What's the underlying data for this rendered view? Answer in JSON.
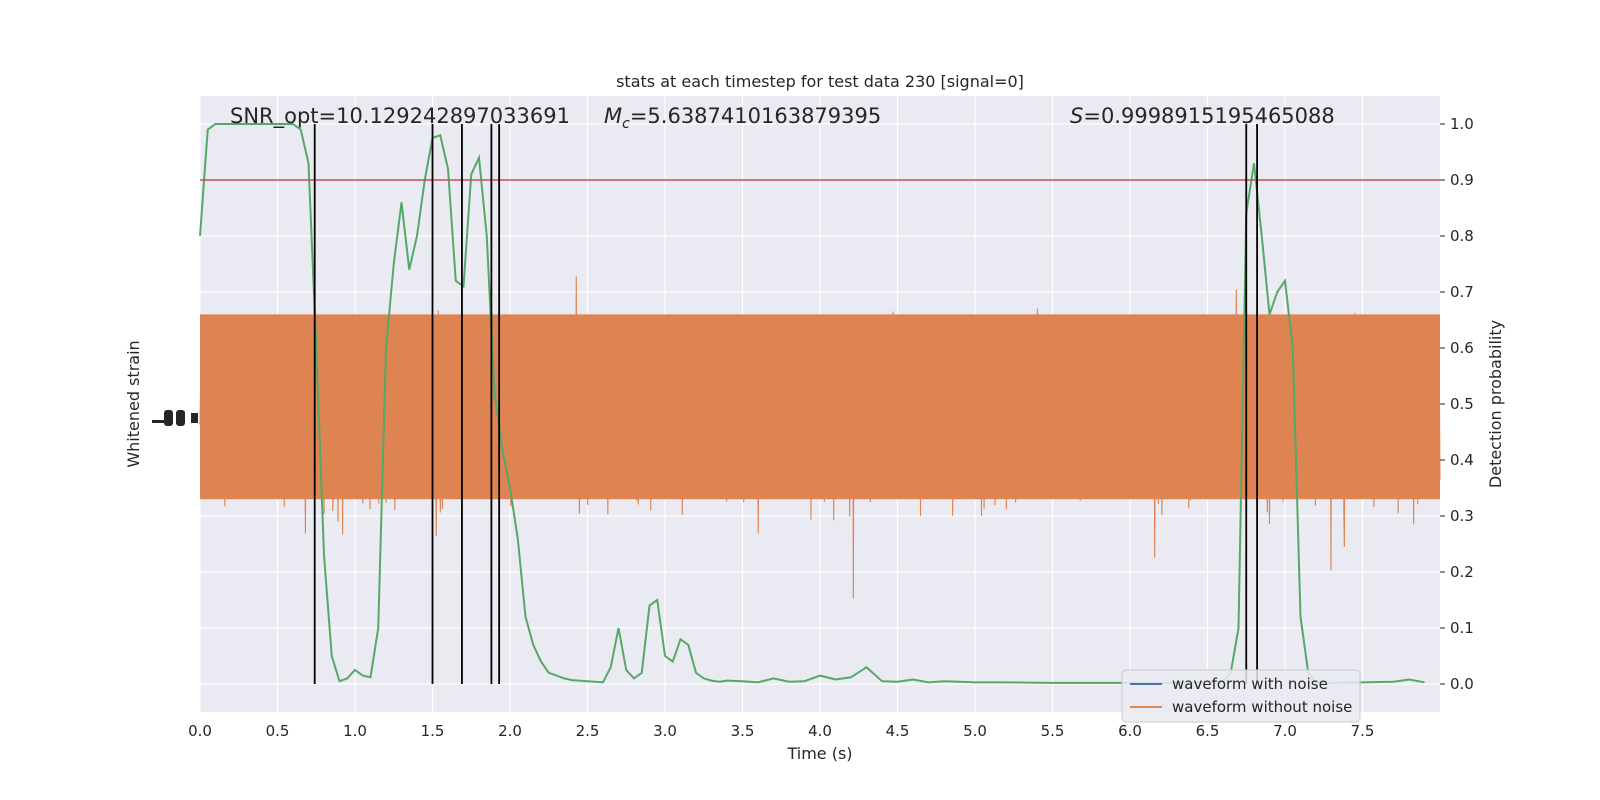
{
  "chart_data": {
    "type": "line",
    "title": "stats at each timestep for test data 230 [signal=0]",
    "xlabel": "Time (s)",
    "ylabel_left": "Whitened strain",
    "ylabel_right": "Detection probability",
    "xlim": [
      0.0,
      8.0
    ],
    "ylim_right": [
      -0.05,
      1.05
    ],
    "x_ticks": [
      "0.0",
      "0.5",
      "1.0",
      "1.5",
      "2.0",
      "2.5",
      "3.0",
      "3.5",
      "4.0",
      "4.5",
      "5.0",
      "5.5",
      "6.0",
      "6.5",
      "7.0",
      "7.5"
    ],
    "y_ticks_right": [
      "0.0",
      "0.1",
      "0.2",
      "0.3",
      "0.4",
      "0.5",
      "0.6",
      "0.7",
      "0.8",
      "0.9",
      "1.0"
    ],
    "grid": true,
    "legend_position": "lower-right",
    "annotations": {
      "snr": "SNR_opt=10.129242897033691",
      "mc_symbol": "M",
      "mc_sub": "c",
      "mc_value": "=5.6387410163879395",
      "s_symbol": "S",
      "s_value": "=0.9998915195465088"
    },
    "threshold": 0.9,
    "vertical_lines": [
      0.74,
      1.5,
      1.69,
      1.88,
      1.93,
      6.75,
      6.82
    ],
    "series": [
      {
        "name": "waveform with noise",
        "color": "#4c72b0",
        "kind": "strain"
      },
      {
        "name": "waveform without noise",
        "color": "#dd8452",
        "kind": "strain"
      },
      {
        "color": "#55a868",
        "kind": "probability",
        "x": [
          0.0,
          0.05,
          0.1,
          0.15,
          0.2,
          0.25,
          0.3,
          0.35,
          0.4,
          0.45,
          0.5,
          0.55,
          0.6,
          0.65,
          0.7,
          0.75,
          0.8,
          0.85,
          0.9,
          0.95,
          1.0,
          1.05,
          1.1,
          1.15,
          1.2,
          1.25,
          1.3,
          1.35,
          1.4,
          1.45,
          1.5,
          1.55,
          1.6,
          1.65,
          1.7,
          1.75,
          1.8,
          1.85,
          1.9,
          1.95,
          2.0,
          2.05,
          2.1,
          2.15,
          2.2,
          2.25,
          2.3,
          2.35,
          2.4,
          2.5,
          2.6,
          2.65,
          2.7,
          2.75,
          2.8,
          2.85,
          2.9,
          2.95,
          3.0,
          3.05,
          3.1,
          3.15,
          3.2,
          3.25,
          3.3,
          3.35,
          3.4,
          3.5,
          3.6,
          3.7,
          3.8,
          3.9,
          4.0,
          4.1,
          4.2,
          4.3,
          4.4,
          4.5,
          4.6,
          4.7,
          4.8,
          4.9,
          5.0,
          5.2,
          5.5,
          6.0,
          6.4,
          6.5,
          6.6,
          6.65,
          6.7,
          6.75,
          6.8,
          6.85,
          6.9,
          6.95,
          7.0,
          7.05,
          7.1,
          7.15,
          7.2,
          7.3,
          7.5,
          7.7,
          7.8,
          7.9
        ],
        "y": [
          0.8,
          0.99,
          1.0,
          1.0,
          1.0,
          1.0,
          1.0,
          1.0,
          1.0,
          1.0,
          1.0,
          1.0,
          1.0,
          0.99,
          0.93,
          0.6,
          0.23,
          0.05,
          0.005,
          0.01,
          0.025,
          0.015,
          0.012,
          0.1,
          0.6,
          0.75,
          0.86,
          0.74,
          0.8,
          0.9,
          0.975,
          0.98,
          0.92,
          0.72,
          0.71,
          0.91,
          0.94,
          0.8,
          0.52,
          0.42,
          0.35,
          0.26,
          0.12,
          0.07,
          0.04,
          0.02,
          0.015,
          0.01,
          0.007,
          0.005,
          0.003,
          0.03,
          0.1,
          0.025,
          0.01,
          0.02,
          0.14,
          0.15,
          0.05,
          0.04,
          0.08,
          0.07,
          0.02,
          0.01,
          0.006,
          0.004,
          0.006,
          0.005,
          0.003,
          0.01,
          0.004,
          0.005,
          0.015,
          0.008,
          0.012,
          0.03,
          0.005,
          0.004,
          0.008,
          0.003,
          0.005,
          0.004,
          0.003,
          0.003,
          0.002,
          0.002,
          0.002,
          0.004,
          0.005,
          0.02,
          0.1,
          0.84,
          0.93,
          0.8,
          0.66,
          0.7,
          0.72,
          0.6,
          0.12,
          0.02,
          0.003,
          0.002,
          0.003,
          0.004,
          0.008,
          0.003
        ]
      }
    ]
  }
}
